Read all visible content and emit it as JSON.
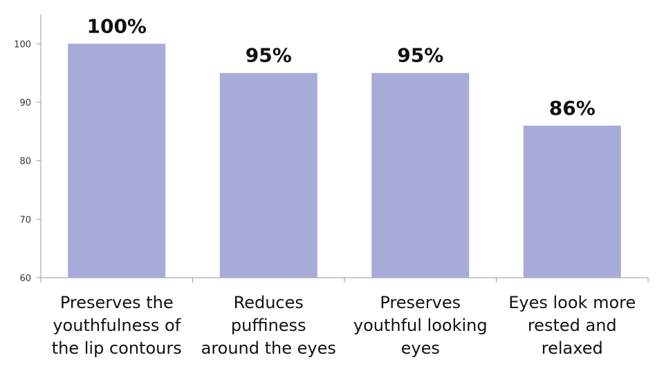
{
  "chart_data": {
    "type": "bar",
    "categories": [
      [
        "Preserves the",
        "youthfulness of",
        "the lip contours"
      ],
      [
        "Reduces",
        "puffiness",
        "around the eyes"
      ],
      [
        "Preserves",
        "youthful looking",
        "eyes"
      ],
      [
        "Eyes look more",
        "rested and",
        "relaxed"
      ]
    ],
    "values": [
      100,
      95,
      95,
      86
    ],
    "data_labels": [
      "100%",
      "95%",
      "95%",
      "86%"
    ],
    "y_ticks": [
      60,
      70,
      80,
      90,
      100
    ],
    "ylim": [
      60,
      105
    ],
    "grid": false,
    "legend": "none",
    "bar_color": "#a7abd8",
    "axis_color": "#999999"
  }
}
